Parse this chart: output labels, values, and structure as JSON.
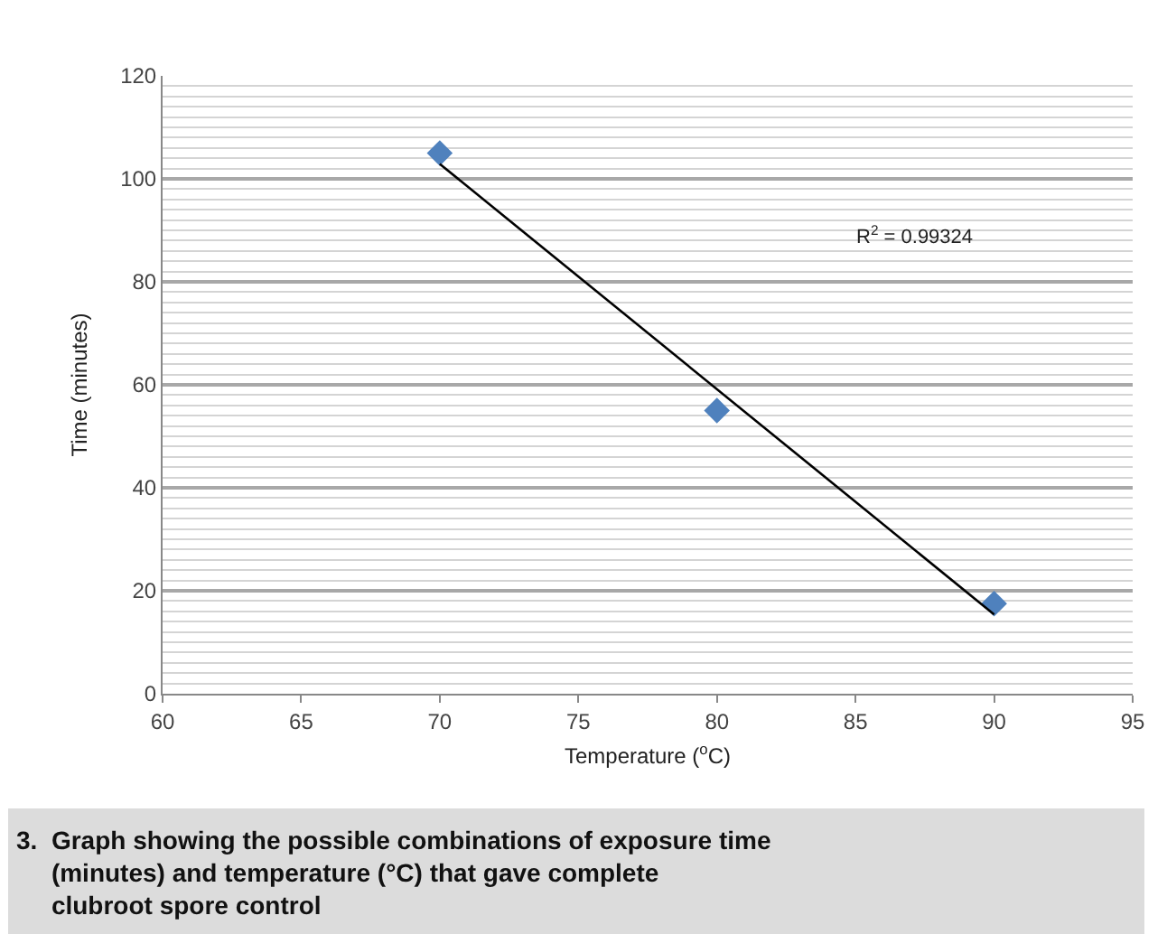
{
  "chart_data": {
    "type": "scatter",
    "xlabel": "Temperature ($^{o}$C)",
    "ylabel": "Time (minutes)",
    "series": [
      {
        "color": "#4f81bd",
        "marker": "diamond",
        "x": [
          70,
          80,
          90
        ],
        "values": [
          105,
          55,
          17.5
        ]
      },
      {
        "type": "line",
        "color": "#000000",
        "marker": "none",
        "line_style": "solid",
        "x": [
          70,
          90
        ],
        "values": [
          102.9,
          15.4
        ]
      }
    ],
    "xlim": [
      60,
      95
    ],
    "xticks": [
      60,
      65,
      70,
      75,
      80,
      85,
      90,
      95
    ],
    "ylim": [
      0,
      120
    ],
    "yticks": [
      0,
      20,
      40,
      60,
      80,
      100,
      120
    ],
    "grid": "y",
    "annotations": [
      "R$^{2}$ = 0.99324",
      "3.  Graph showing the possible combinations of exposure time (minutes) and temperature (°C) that gave complete clubroot spore control"
    ]
  }
}
